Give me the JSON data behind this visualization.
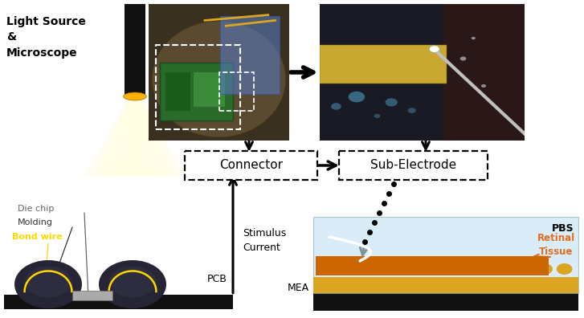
{
  "bg_color": "#ffffff",
  "light_source_label": "Light Source\n&\nMicroscope",
  "stimulus_label": "Stimulus\nCurrent",
  "pcb_label": "PCB",
  "mea_label": "MEA",
  "pbs_label": "PBS",
  "die_chip_label": "Die chip",
  "molding_label": "Molding",
  "bond_wire_label": "Bond wire",
  "retinal_label": "Retinal\nTissue",
  "connector_label": "Connector",
  "sub_electrode_label": "Sub-Electrode",
  "mic_body_color": "#111111",
  "mic_lens_color": "#FFB300",
  "beam_color": "#FFFDE0",
  "mound_color": "#2a2a3a",
  "bond_wire_color": "#FFD700",
  "orange_color": "#CC6600",
  "light_blue_color": "#C5E3F5",
  "yellow_mea_color": "#DAA520",
  "black_base_color": "#111111",
  "retinal_text_color": "#E07020",
  "photo1_bg": "#4a3820",
  "photo2_bg": "#111520"
}
